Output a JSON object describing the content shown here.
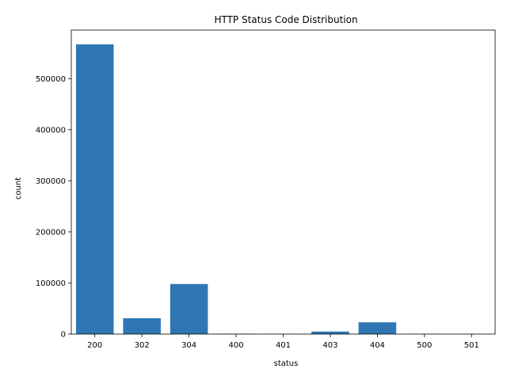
{
  "chart_data": {
    "type": "bar",
    "title": "HTTP Status Code Distribution",
    "xlabel": "status",
    "ylabel": "count",
    "categories": [
      "200",
      "302",
      "304",
      "400",
      "401",
      "403",
      "404",
      "500",
      "501"
    ],
    "values": [
      567000,
      31000,
      98000,
      700,
      300,
      5000,
      23000,
      300,
      100
    ],
    "ylim": [
      0,
      595000
    ],
    "yticks": [
      0,
      100000,
      200000,
      300000,
      400000,
      500000
    ],
    "bar_color": "#2f77b4",
    "grid": false,
    "legend": "none"
  }
}
